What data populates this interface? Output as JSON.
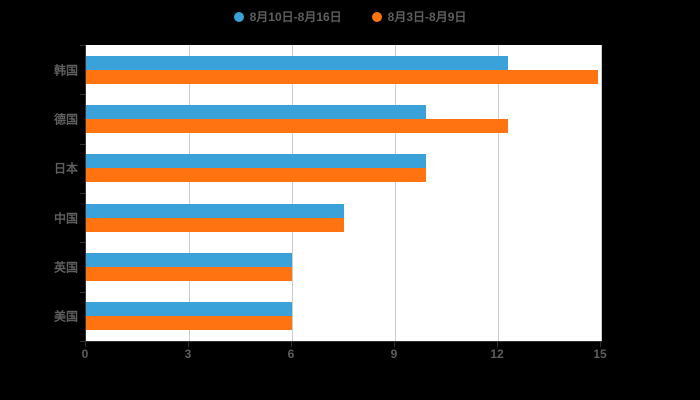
{
  "chart_data": {
    "type": "bar",
    "orientation": "horizontal",
    "title": "",
    "xlabel": "",
    "ylabel": "",
    "categories": [
      "韩国",
      "德国",
      "日本",
      "中国",
      "英国",
      "美国"
    ],
    "series": [
      {
        "name": "8月10日-8月16日",
        "color": "#3aa1d9",
        "values": [
          12.3,
          9.9,
          9.9,
          7.5,
          6,
          6
        ]
      },
      {
        "name": "8月3日-8月9日",
        "color": "#ff7310",
        "values": [
          14.9,
          12.3,
          9.9,
          7.5,
          6,
          6
        ]
      }
    ],
    "xlim": [
      0,
      15
    ],
    "xticks": [
      0,
      3,
      6,
      9,
      12,
      15
    ],
    "grid": true,
    "legend_position": "top"
  },
  "colors": {
    "background": "#000000",
    "plot_background": "#ffffff",
    "grid": "#cccccc",
    "axis": "#333333",
    "label": "#5e5e5e",
    "series1": "#3aa1d9",
    "series2": "#ff7310"
  }
}
